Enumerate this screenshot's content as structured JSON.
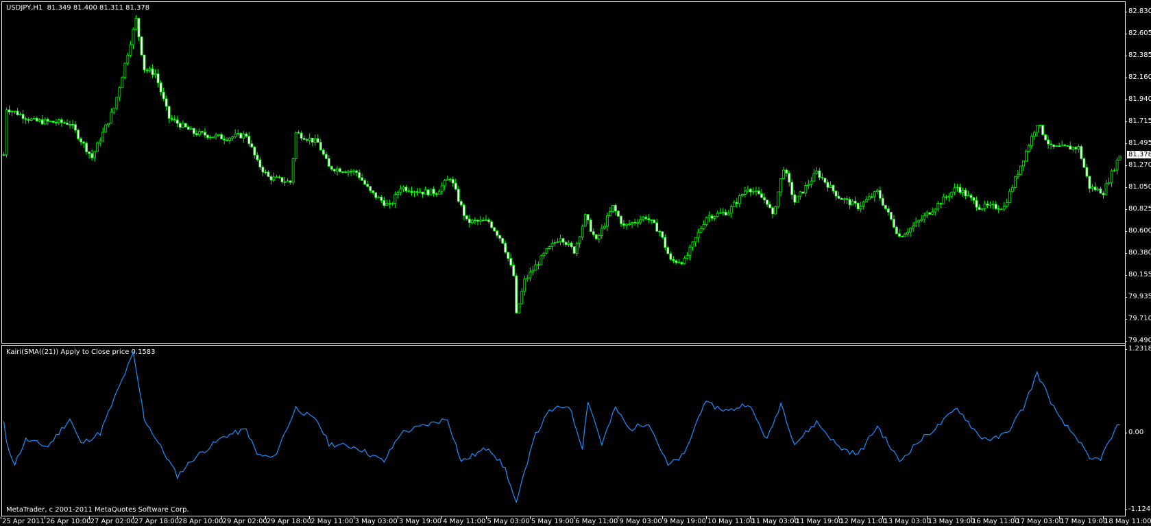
{
  "window": {
    "symbol_header": "USDJPY,H1  81.349 81.400 81.311 81.378",
    "indicator_header": "Kairi(SMA((21)) Apply to Close price 0.1583",
    "copyright": "MetaTrader, c 2001-2011 MetaQuotes Software Corp.",
    "current_price": "81.378"
  },
  "colors": {
    "background": "#000000",
    "candle": "#00ff00",
    "bear_body": "#ffffff",
    "indicator_line": "#1e90ff",
    "axis": "#ffffff"
  },
  "chart_data": [
    {
      "type": "candlestick",
      "title": "USDJPY,H1",
      "ylim": [
        79.49,
        82.83
      ],
      "y_ticks": [
        "82.830",
        "82.605",
        "82.385",
        "82.160",
        "81.940",
        "81.715",
        "81.495",
        "81.270",
        "81.050",
        "80.825",
        "80.600",
        "80.380",
        "80.155",
        "79.935",
        "79.710",
        "79.490"
      ],
      "x_ticks": [
        "25 Apr 2011",
        "26 Apr 10:00",
        "27 Apr 02:00",
        "27 Apr 18:00",
        "28 Apr 10:00",
        "29 Apr 02:00",
        "29 Apr 18:00",
        "2 May 11:00",
        "3 May 03:00",
        "3 May 19:00",
        "4 May 11:00",
        "5 May 03:00",
        "5 May 19:00",
        "6 May 11:00",
        "9 May 03:00",
        "9 May 19:00",
        "10 May 11:00",
        "11 May 03:00",
        "11 May 19:00",
        "12 May 11:00",
        "13 May 03:00",
        "13 May 19:00",
        "16 May 11:00",
        "17 May 03:00",
        "17 May 19:00",
        "18 May 11:00"
      ],
      "bars_per_x_tick": 16,
      "close_path": [
        [
          1,
          81.85
        ],
        [
          11,
          81.72
        ],
        [
          24,
          81.7
        ],
        [
          32,
          81.35
        ],
        [
          40,
          81.85
        ],
        [
          44,
          82.3
        ],
        [
          48,
          82.75
        ],
        [
          51,
          82.25
        ],
        [
          55,
          82.2
        ],
        [
          60,
          81.75
        ],
        [
          69,
          81.6
        ],
        [
          80,
          81.55
        ],
        [
          88,
          81.58
        ],
        [
          92,
          81.3
        ],
        [
          96,
          81.15
        ],
        [
          104,
          81.1
        ],
        [
          106,
          81.6
        ],
        [
          114,
          81.5
        ],
        [
          118,
          81.25
        ],
        [
          128,
          81.2
        ],
        [
          133,
          81.0
        ],
        [
          140,
          80.85
        ],
        [
          144,
          81.05
        ],
        [
          152,
          81.0
        ],
        [
          157,
          81.0
        ],
        [
          162,
          81.15
        ],
        [
          168,
          80.7
        ],
        [
          176,
          80.7
        ],
        [
          181,
          80.5
        ],
        [
          185,
          80.15
        ],
        [
          186,
          79.75
        ],
        [
          189,
          80.1
        ],
        [
          197,
          80.4
        ],
        [
          202,
          80.55
        ],
        [
          207,
          80.4
        ],
        [
          211,
          80.75
        ],
        [
          215,
          80.5
        ],
        [
          221,
          80.85
        ],
        [
          225,
          80.65
        ],
        [
          233,
          80.75
        ],
        [
          238,
          80.6
        ],
        [
          242,
          80.3
        ],
        [
          247,
          80.3
        ],
        [
          255,
          80.75
        ],
        [
          263,
          80.8
        ],
        [
          270,
          81.05
        ],
        [
          277,
          80.9
        ],
        [
          279,
          80.75
        ],
        [
          283,
          81.25
        ],
        [
          287,
          80.9
        ],
        [
          295,
          81.2
        ],
        [
          303,
          80.95
        ],
        [
          310,
          80.85
        ],
        [
          317,
          81.0
        ],
        [
          325,
          80.55
        ],
        [
          330,
          80.65
        ],
        [
          338,
          80.85
        ],
        [
          346,
          81.05
        ],
        [
          354,
          80.85
        ],
        [
          363,
          80.85
        ],
        [
          368,
          81.2
        ],
        [
          375,
          81.7
        ],
        [
          380,
          81.45
        ],
        [
          390,
          81.45
        ],
        [
          394,
          81.05
        ],
        [
          399,
          81.0
        ],
        [
          405,
          81.378
        ]
      ]
    },
    {
      "type": "line",
      "title": "Kairi(SMA((21)) Apply to Close price 0.1583",
      "ylim": [
        -1.1248,
        1.2318
      ],
      "y_ticks": [
        "1.2318",
        "0.00",
        "-1.1248"
      ],
      "values_path": [
        [
          1,
          -0.16
        ],
        [
          4,
          -0.45
        ],
        [
          8,
          -0.1
        ],
        [
          16,
          -0.2
        ],
        [
          24,
          0.21
        ],
        [
          28,
          -0.16
        ],
        [
          35,
          0
        ],
        [
          41,
          0.59
        ],
        [
          47,
          1.16
        ],
        [
          51,
          0.21
        ],
        [
          57,
          -0.21
        ],
        [
          63,
          -0.63
        ],
        [
          69,
          -0.37
        ],
        [
          80,
          -0.05
        ],
        [
          88,
          0.05
        ],
        [
          92,
          -0.32
        ],
        [
          98,
          -0.37
        ],
        [
          106,
          0.37
        ],
        [
          114,
          0.16
        ],
        [
          118,
          -0.16
        ],
        [
          128,
          -0.21
        ],
        [
          138,
          -0.42
        ],
        [
          144,
          0
        ],
        [
          152,
          0.1
        ],
        [
          161,
          0.21
        ],
        [
          166,
          -0.42
        ],
        [
          176,
          -0.21
        ],
        [
          182,
          -0.53
        ],
        [
          186,
          -1.05
        ],
        [
          192,
          -0.1
        ],
        [
          198,
          0.32
        ],
        [
          205,
          0.41
        ],
        [
          210,
          -0.21
        ],
        [
          212,
          0.48
        ],
        [
          217,
          -0.16
        ],
        [
          222,
          0.37
        ],
        [
          227,
          0.05
        ],
        [
          234,
          0.16
        ],
        [
          241,
          -0.48
        ],
        [
          247,
          -0.32
        ],
        [
          254,
          0.44
        ],
        [
          263,
          0.32
        ],
        [
          270,
          0.44
        ],
        [
          277,
          -0.1
        ],
        [
          282,
          0.44
        ],
        [
          287,
          -0.16
        ],
        [
          295,
          0.16
        ],
        [
          303,
          -0.21
        ],
        [
          310,
          -0.32
        ],
        [
          317,
          0.1
        ],
        [
          325,
          -0.42
        ],
        [
          331,
          -0.16
        ],
        [
          339,
          0.1
        ],
        [
          346,
          0.37
        ],
        [
          354,
          -0.05
        ],
        [
          359,
          -0.1
        ],
        [
          364,
          0
        ],
        [
          370,
          0.37
        ],
        [
          375,
          0.88
        ],
        [
          383,
          0.21
        ],
        [
          390,
          -0.1
        ],
        [
          394,
          -0.4
        ],
        [
          398,
          -0.37
        ],
        [
          405,
          0.1583
        ]
      ]
    }
  ]
}
